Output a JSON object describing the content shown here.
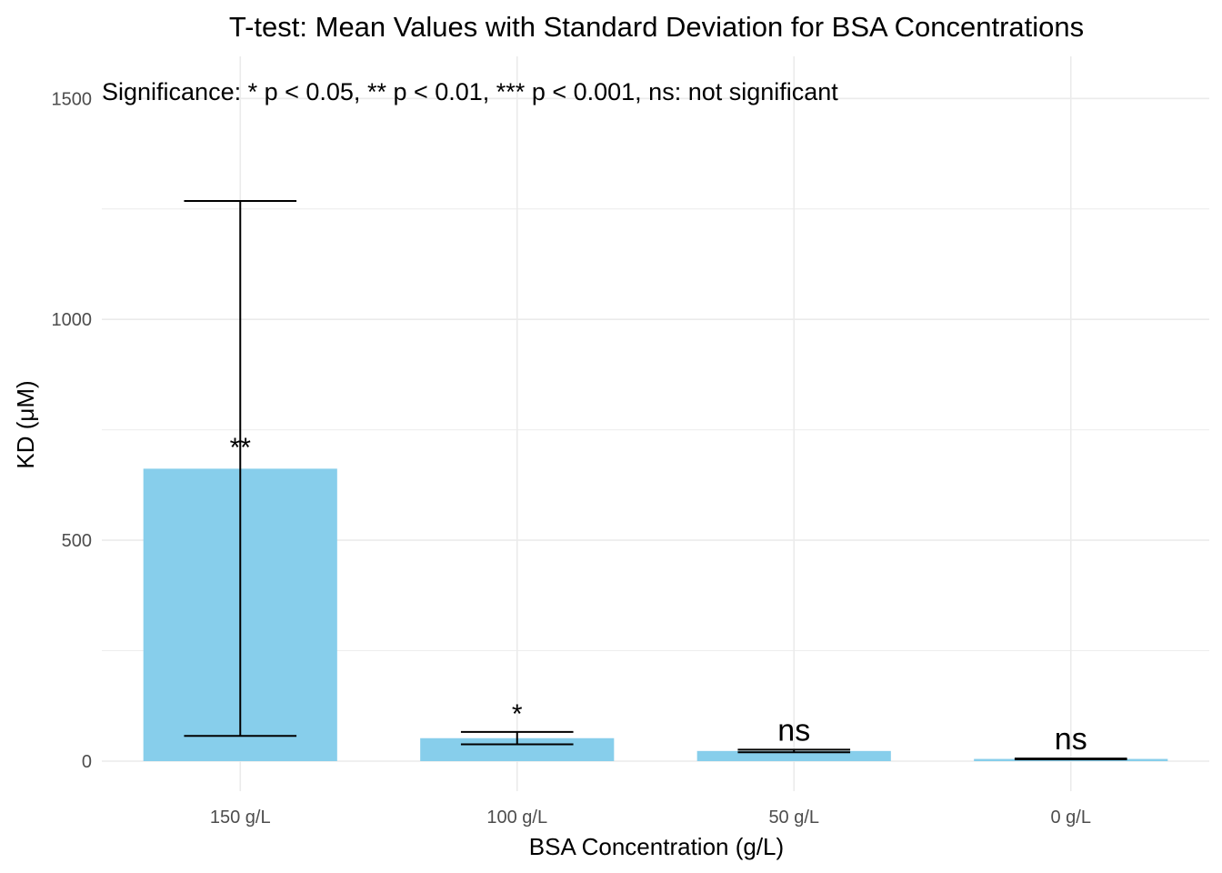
{
  "chart_data": {
    "type": "bar",
    "title": "T-test: Mean Values with Standard Deviation for BSA Concentrations",
    "annotation": "Significance: * p < 0.05, ** p < 0.01, *** p < 0.001, ns: not significant",
    "xlabel": "BSA Concentration (g/L)",
    "ylabel": "KD (μM)",
    "categories": [
      "150 g/L",
      "100 g/L",
      "50 g/L",
      "0 g/L"
    ],
    "values": [
      662,
      52,
      23,
      5
    ],
    "error_low": [
      57,
      38,
      20,
      4
    ],
    "error_high": [
      1268,
      66,
      26,
      6
    ],
    "significance": [
      "**",
      "*",
      "ns",
      "ns"
    ],
    "ylim": [
      -65,
      1600
    ],
    "yticks": [
      0,
      500,
      1000,
      1500
    ],
    "grid": true,
    "bar_color": "#87CEEB"
  }
}
